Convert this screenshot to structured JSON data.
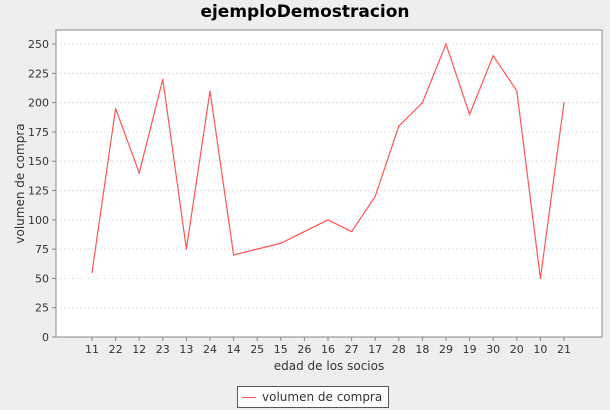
{
  "chart_data": {
    "type": "line",
    "title": "ejemploDemostracion",
    "xlabel": "edad de los socios",
    "ylabel": "volumen de compra",
    "categories": [
      "11",
      "22",
      "12",
      "23",
      "13",
      "24",
      "14",
      "25",
      "15",
      "26",
      "16",
      "27",
      "17",
      "28",
      "18",
      "29",
      "19",
      "30",
      "20",
      "10",
      "21"
    ],
    "series": [
      {
        "name": "volumen de compra",
        "color": "#ff5555",
        "values": [
          55,
          195,
          140,
          220,
          75,
          210,
          70,
          75,
          80,
          90,
          100,
          90,
          120,
          180,
          200,
          250,
          190,
          240,
          210,
          50,
          200
        ]
      }
    ],
    "ylim": [
      0,
      262
    ],
    "yticks": [
      0,
      25,
      50,
      75,
      100,
      125,
      150,
      175,
      200,
      225,
      250
    ],
    "grid": true,
    "legend_position": "bottom"
  }
}
